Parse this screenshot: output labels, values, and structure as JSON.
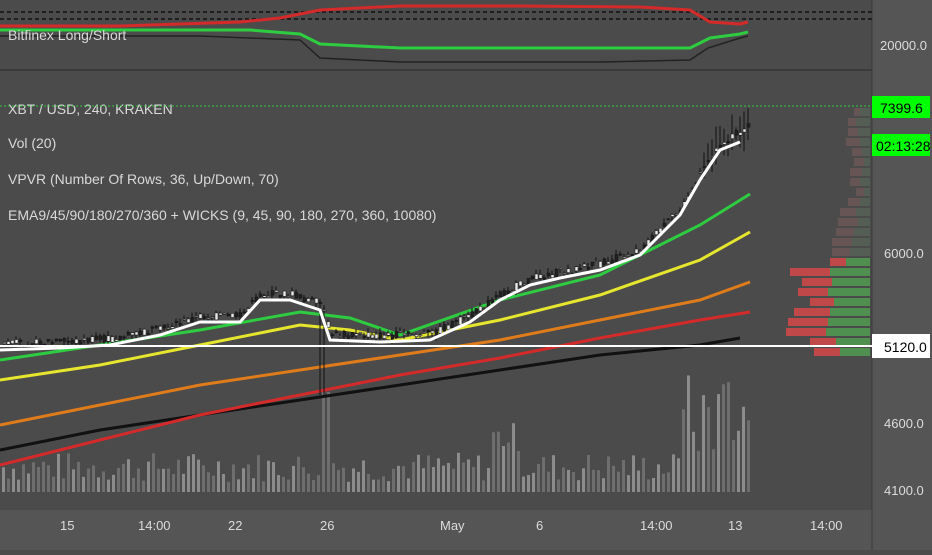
{
  "top_panel": {
    "label": "Bitfinex Long/Short",
    "y_tick": "20000.0"
  },
  "main_panel": {
    "symbol_line": "XBT / USD, 240, KRAKEN",
    "legend": [
      "Vol (20)",
      "VPVR (Number Of Rows, 36, Up/Down, 70)",
      "EMA9/45/90/180/270/360 + WICKS (9, 45, 90, 180, 270, 360, 10080)"
    ],
    "price_badge": "7399.6",
    "countdown_badge": "02:13:28",
    "level_badge": "5120.0",
    "y_ticks": [
      "6000.0",
      "4600.0",
      "4100.0"
    ]
  },
  "x_axis": {
    "ticks": [
      "15",
      "14:00",
      "22",
      "26",
      "May",
      "6",
      "14:00",
      "13",
      "14:00"
    ]
  },
  "colors": {
    "background": "#4b4b4b",
    "axis_bg": "#555555",
    "green_badge": "#00ff00",
    "ema9": "#ffffff",
    "ema45": "#2ecc40",
    "ema90": "#e6e62e",
    "ema180": "#e07b1a",
    "ema270": "#d42a2a",
    "ema360": "#111111",
    "vpvr_up": "#4f8f4f",
    "vpvr_down": "#c04848"
  },
  "icons": [
    "candlestick-series",
    "volume-histogram",
    "volume-profile"
  ]
}
